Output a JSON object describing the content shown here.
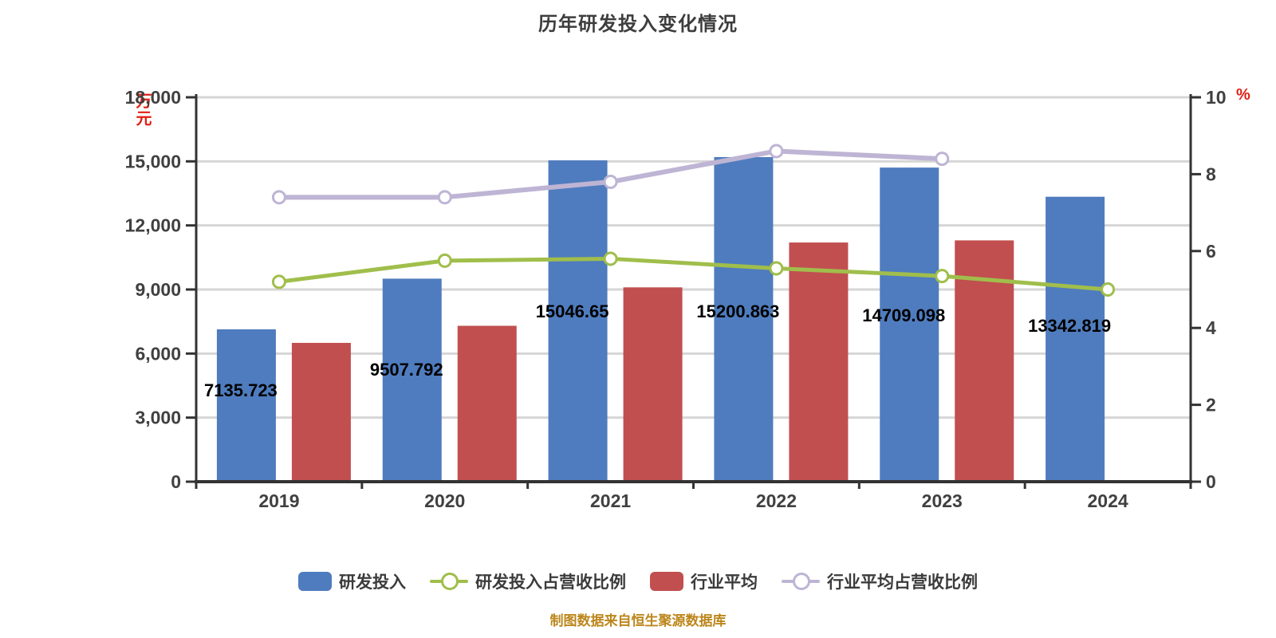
{
  "footer": "制图数据来自恒生聚源数据库",
  "chart_data": {
    "type": "bar",
    "title": "历年研发投入变化情况",
    "categories": [
      "2019",
      "2020",
      "2021",
      "2022",
      "2023",
      "2024"
    ],
    "series": [
      {
        "name": "研发投入",
        "type": "bar",
        "axis": "left",
        "color": "#4f7cbe",
        "values": [
          7135.723,
          9507.792,
          15046.65,
          15200.863,
          14709.098,
          13342.819
        ],
        "labels": [
          "7135.723",
          "9507.792",
          "15046.65",
          "15200.863",
          "14709.098",
          "13342.819"
        ]
      },
      {
        "name": "行业平均",
        "type": "bar",
        "axis": "left",
        "color": "#c14f4f",
        "values": [
          6500,
          7300,
          9100,
          11200,
          11300,
          null
        ]
      },
      {
        "name": "研发投入占营收比例",
        "type": "line",
        "axis": "right",
        "color": "#a0be4b",
        "values": [
          5.2,
          5.75,
          5.8,
          5.55,
          5.35,
          5.0
        ]
      },
      {
        "name": "行业平均占营收比例",
        "type": "line",
        "axis": "right",
        "color": "#beb4d4",
        "values": [
          7.4,
          7.4,
          7.8,
          8.6,
          8.4,
          null
        ]
      }
    ],
    "legend_order": [
      0,
      2,
      1,
      3
    ],
    "legend_position": "bottom",
    "grid": true,
    "left_axis": {
      "unit": "万元",
      "min": 0,
      "max": 18000,
      "ticks": [
        "0",
        "3,000",
        "6,000",
        "9,000",
        "12,000",
        "15,000",
        "18,000"
      ]
    },
    "right_axis": {
      "unit": "%",
      "min": 0,
      "max": 10,
      "ticks": [
        "0",
        "2",
        "4",
        "6",
        "8",
        "10"
      ]
    },
    "colors": {
      "axis": "#333333",
      "gridline": "#d6d6d6",
      "tick_label": "#404040",
      "bar_label": "#000000",
      "title": "#3d3d3d",
      "unit": "#e11e14",
      "footer": "#bc861b"
    }
  }
}
